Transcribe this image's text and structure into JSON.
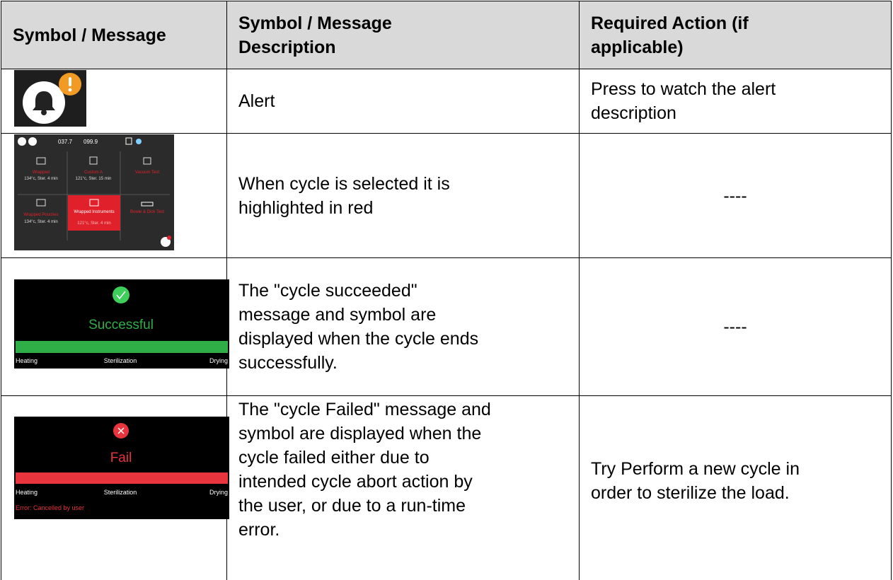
{
  "header": {
    "col1": "Symbol / Message",
    "col2": [
      "Symbol / Message",
      "Description"
    ],
    "col3": [
      "Required Action (if",
      "applicable)"
    ]
  },
  "rows": [
    {
      "description": [
        "Alert"
      ],
      "action": [
        "Press to watch the alert",
        "description"
      ]
    },
    {
      "description": [
        "When cycle is selected it is",
        "highlighted in red"
      ],
      "action": [
        "----"
      ]
    },
    {
      "description": [
        "The \"cycle succeeded\"",
        "message and symbol are",
        "displayed when the cycle ends",
        "successfully."
      ],
      "action": [
        "----"
      ]
    },
    {
      "description": [
        "The \"cycle Failed\" message and",
        "symbol are displayed when the",
        "cycle failed either due to",
        "intended cycle abort action by",
        "the user, or due to a run-time",
        "error."
      ],
      "action": [
        "Try Perform a new cycle in",
        "order to sterilize the load."
      ]
    }
  ],
  "screens": {
    "cycle_menu": {
      "temperature": "037.7",
      "pressure": "099.9",
      "tiles": [
        {
          "name": "Wrapped",
          "info": "134°c, Ster. 4 min"
        },
        {
          "name": "Custom A",
          "info": "121°c, Ster. 15 min"
        },
        {
          "name": "Vacuum Test"
        },
        {
          "name": "Wrapped Pouches",
          "info": "134°c, Ster. 4 min"
        },
        {
          "name": "Wrapped Instruments",
          "info": "121°c, Ster. 4 min"
        },
        {
          "name": "Bowie & Dick Test"
        }
      ]
    },
    "success": {
      "status": "Successful",
      "phases": [
        "Heating",
        "Sterilization",
        "Drying"
      ]
    },
    "fail": {
      "status": "Fail",
      "phases": [
        "Heating",
        "Sterilization",
        "Drying"
      ],
      "error": "Error: Cancelled by user"
    }
  }
}
